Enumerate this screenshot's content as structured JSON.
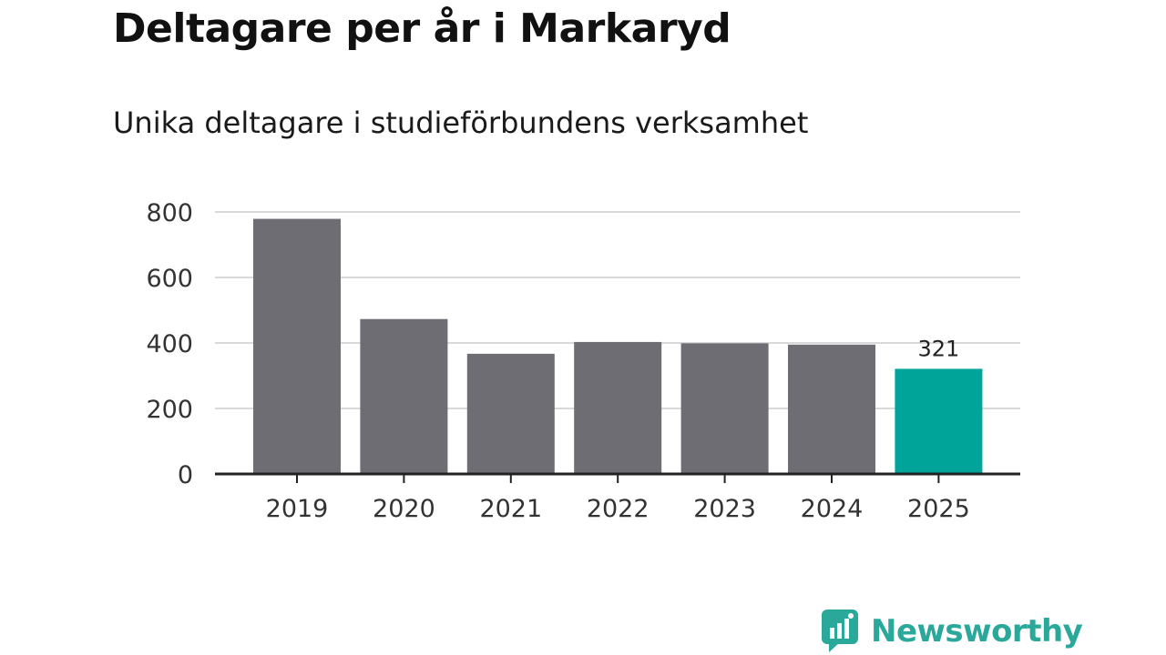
{
  "title": "Deltagare per år i Markaryd",
  "subtitle": "Unika deltagare i studieförbundens verksamhet",
  "brand": {
    "name": "Newsworthy",
    "icon": "newsworthy-logo-icon",
    "color": "#2aa89a"
  },
  "colors": {
    "bar": "#6e6d73",
    "highlight": "#00a499",
    "grid": "#d9d9d9",
    "axis": "#222222"
  },
  "chart_data": {
    "type": "bar",
    "categories": [
      "2019",
      "2020",
      "2021",
      "2022",
      "2023",
      "2024",
      "2025"
    ],
    "values": [
      779,
      473,
      367,
      403,
      399,
      395,
      321
    ],
    "title": "Deltagare per år i Markaryd",
    "subtitle": "Unika deltagare i studieförbundens verksamhet",
    "xlabel": "",
    "ylabel": "",
    "ylim": [
      0,
      800
    ],
    "yticks": [
      0,
      200,
      400,
      600,
      800
    ],
    "ytick_labels": [
      "0",
      "200",
      "400",
      "600",
      "800"
    ],
    "grid": true,
    "highlight_index": 6,
    "data_labels": [
      {
        "index": 6,
        "text": "321"
      }
    ]
  }
}
